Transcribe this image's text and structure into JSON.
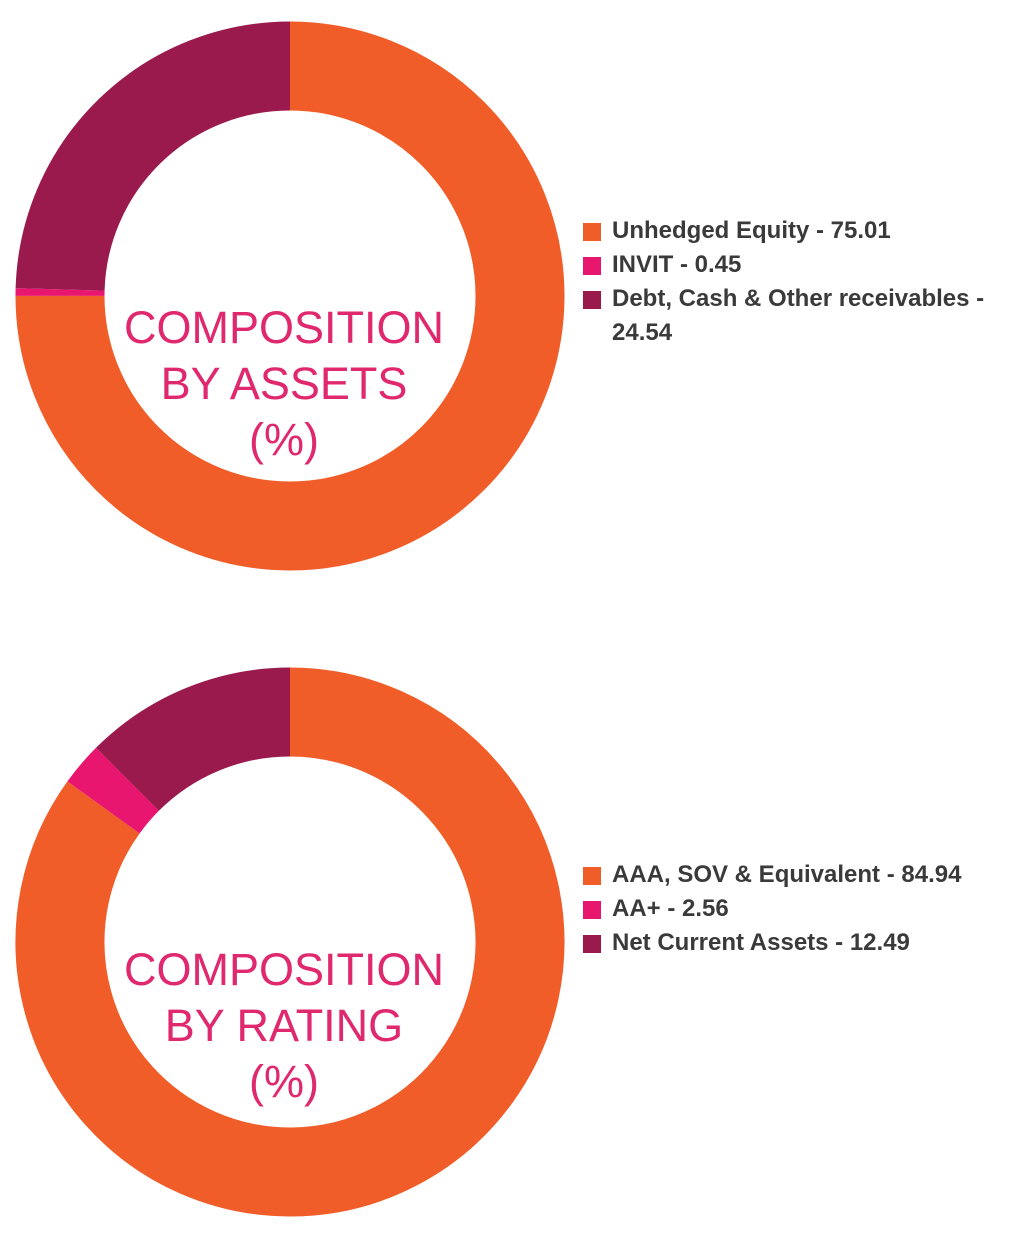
{
  "chart_data": [
    {
      "type": "pie",
      "title": [
        "COMPOSITION",
        "BY ASSETS",
        "(%)"
      ],
      "categories": [
        "Unhedged Equity",
        "INVIT",
        "Debt, Cash & Other receivables"
      ],
      "values": [
        75.01,
        0.45,
        24.54
      ],
      "colors": [
        "#f15d28",
        "#e8166f",
        "#9a1a4e"
      ],
      "legend_labels": [
        "Unhedged Equity - 75.01",
        "INVIT - 0.45",
        "Debt, Cash & Other receivables - 24.54"
      ],
      "legend_placement": "right"
    },
    {
      "type": "pie",
      "title": [
        "COMPOSITION",
        "BY RATING",
        "(%)"
      ],
      "categories": [
        "AAA, SOV & Equivalent",
        "AA+",
        "Net Current Assets"
      ],
      "values": [
        84.94,
        2.56,
        12.49
      ],
      "colors": [
        "#f15d28",
        "#e8166f",
        "#9a1a4e"
      ],
      "legend_labels": [
        "AAA, SOV & Equivalent - 84.94",
        "AA+ - 2.56",
        "Net Current Assets - 12.49"
      ],
      "legend_placement": "right"
    }
  ]
}
